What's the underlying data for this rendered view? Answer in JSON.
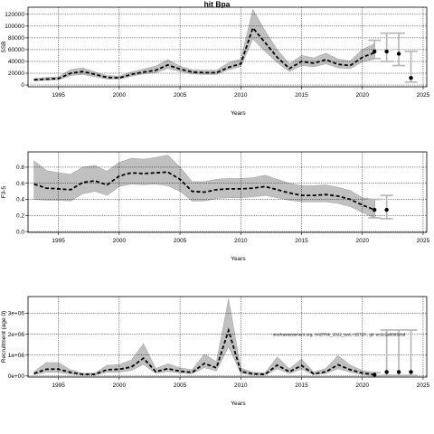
{
  "chart_data": [
    {
      "type": "line",
      "title": "hit Bpa",
      "xlabel": "Years",
      "ylabel": "SSB",
      "xlim": [
        1992.5,
        2025.3
      ],
      "ylim": [
        -3000,
        132000
      ],
      "xticks": [
        1995,
        2000,
        2005,
        2010,
        2015,
        2020,
        2025
      ],
      "yticks": [
        0,
        20000,
        40000,
        60000,
        80000,
        100000,
        120000
      ],
      "ytick_labels": [
        "0",
        "20000",
        "40000",
        "60000",
        "80000",
        "100000",
        "120000"
      ],
      "grid": true,
      "x": [
        1993,
        1994,
        1995,
        1996,
        1997,
        1998,
        1999,
        2000,
        2001,
        2002,
        2003,
        2004,
        2005,
        2006,
        2007,
        2008,
        2009,
        2010,
        2011,
        2012,
        2013,
        2014,
        2015,
        2016,
        2017,
        2018,
        2019,
        2020,
        2021
      ],
      "estimate": [
        9000,
        10000,
        11000,
        20000,
        23000,
        18000,
        13000,
        12000,
        18000,
        22000,
        25000,
        34000,
        27000,
        22000,
        21000,
        21000,
        30000,
        36000,
        97000,
        72000,
        47000,
        28000,
        40000,
        37000,
        43000,
        35000,
        33000,
        47000,
        55000
      ],
      "lower": [
        7000,
        8000,
        9000,
        16000,
        18000,
        14000,
        10000,
        10000,
        15000,
        19000,
        21000,
        28000,
        23000,
        19000,
        18000,
        18000,
        26000,
        31000,
        78000,
        57000,
        38000,
        23000,
        33000,
        31000,
        36000,
        29000,
        28000,
        39000,
        44000
      ],
      "upper": [
        11000,
        13000,
        14000,
        26000,
        29000,
        22000,
        16000,
        15000,
        22000,
        27000,
        32000,
        43000,
        32000,
        26000,
        25000,
        25000,
        38000,
        44000,
        128000,
        92000,
        60000,
        36000,
        50000,
        46000,
        54000,
        44000,
        41000,
        60000,
        70000
      ],
      "forecast": [
        {
          "x": 2021,
          "value": 57000,
          "low": 45000,
          "high": 76000
        },
        {
          "x": 2022,
          "value": 57000,
          "low": 40000,
          "high": 88000
        },
        {
          "x": 2023,
          "value": 53000,
          "low": 33000,
          "high": 88000
        },
        {
          "x": 2024,
          "value": 12000,
          "low": 5000,
          "high": 57000
        }
      ]
    },
    {
      "type": "line",
      "title": "",
      "xlabel": "Years",
      "ylabel": "F3-5",
      "xlim": [
        1992.5,
        2025.3
      ],
      "ylim": [
        -0.01,
        0.99
      ],
      "xticks": [
        1995,
        2000,
        2005,
        2010,
        2015,
        2020,
        2025
      ],
      "yticks": [
        0,
        0.2,
        0.4,
        0.6,
        0.8
      ],
      "ytick_labels": [
        "0.0",
        "0.2",
        "0.4",
        "0.6",
        "0.8"
      ],
      "grid": true,
      "x": [
        1993,
        1994,
        1995,
        1996,
        1997,
        1998,
        1999,
        2000,
        2001,
        2002,
        2003,
        2004,
        2005,
        2006,
        2007,
        2008,
        2009,
        2010,
        2011,
        2012,
        2013,
        2014,
        2015,
        2016,
        2017,
        2018,
        2019,
        2020,
        2021
      ],
      "estimate": [
        0.59,
        0.54,
        0.53,
        0.52,
        0.61,
        0.63,
        0.58,
        0.69,
        0.73,
        0.72,
        0.73,
        0.74,
        0.65,
        0.5,
        0.49,
        0.52,
        0.53,
        0.53,
        0.54,
        0.56,
        0.52,
        0.48,
        0.45,
        0.45,
        0.46,
        0.44,
        0.4,
        0.33,
        0.27
      ],
      "lower": [
        0.4,
        0.39,
        0.39,
        0.38,
        0.47,
        0.5,
        0.45,
        0.56,
        0.59,
        0.58,
        0.59,
        0.57,
        0.5,
        0.38,
        0.38,
        0.41,
        0.42,
        0.42,
        0.43,
        0.45,
        0.42,
        0.39,
        0.37,
        0.37,
        0.37,
        0.35,
        0.31,
        0.24,
        0.17
      ],
      "upper": [
        0.88,
        0.76,
        0.73,
        0.71,
        0.8,
        0.82,
        0.75,
        0.86,
        0.91,
        0.9,
        0.92,
        0.95,
        0.8,
        0.62,
        0.62,
        0.65,
        0.66,
        0.66,
        0.67,
        0.7,
        0.65,
        0.6,
        0.57,
        0.57,
        0.58,
        0.55,
        0.51,
        0.42,
        0.4
      ],
      "forecast": [
        {
          "x": 2021,
          "value": 0.27,
          "low": 0.17,
          "high": 0.4
        },
        {
          "x": 2022,
          "value": 0.27,
          "low": 0.16,
          "high": 0.45
        }
      ]
    },
    {
      "type": "line",
      "title": "",
      "xlabel": "Years",
      "ylabel": "Recruitment (age 0)",
      "xlim": [
        1992.5,
        2025.3
      ],
      "ylim": [
        -50000,
        3800000
      ],
      "xticks": [
        1995,
        2000,
        2005,
        2010,
        2015,
        2020,
        2025
      ],
      "yticks": [
        0,
        1000000,
        2000000,
        3000000
      ],
      "ytick_labels": [
        "0e+00",
        "1e+06",
        "2e+06",
        "3e+06"
      ],
      "grid": true,
      "annotation": "stockassessment.org, HADTbk_2022_test, r15720 , git: ec2c2a6065cbd",
      "x": [
        1993,
        1994,
        1995,
        1996,
        1997,
        1998,
        1999,
        2000,
        2001,
        2002,
        2003,
        2004,
        2005,
        2006,
        2007,
        2008,
        2009,
        2010,
        2011,
        2012,
        2013,
        2014,
        2015,
        2016,
        2017,
        2018,
        2019,
        2020,
        2021
      ],
      "estimate": [
        120000,
        320000,
        330000,
        170000,
        80000,
        80000,
        300000,
        320000,
        430000,
        850000,
        210000,
        350000,
        230000,
        170000,
        600000,
        390000,
        2180000,
        220000,
        100000,
        80000,
        520000,
        200000,
        500000,
        100000,
        200000,
        540000,
        300000,
        140000,
        60000
      ],
      "lower": [
        60000,
        180000,
        180000,
        90000,
        40000,
        40000,
        180000,
        190000,
        260000,
        560000,
        130000,
        220000,
        140000,
        100000,
        400000,
        240000,
        1400000,
        130000,
        50000,
        40000,
        340000,
        120000,
        320000,
        60000,
        120000,
        350000,
        180000,
        70000,
        20000
      ],
      "upper": [
        200000,
        640000,
        640000,
        290000,
        130000,
        140000,
        510000,
        550000,
        760000,
        1540000,
        360000,
        580000,
        390000,
        300000,
        1040000,
        680000,
        3700000,
        380000,
        180000,
        150000,
        910000,
        350000,
        810000,
        180000,
        360000,
        970000,
        520000,
        260000,
        160000
      ],
      "forecast": [
        {
          "x": 2021,
          "value": 60000,
          "low": 20000,
          "high": 160000
        },
        {
          "x": 2022,
          "value": 190000,
          "low": 30000,
          "high": 2200000
        },
        {
          "x": 2023,
          "value": 190000,
          "low": 30000,
          "high": 2200000
        },
        {
          "x": 2024,
          "value": 190000,
          "low": 30000,
          "high": 2200000
        }
      ]
    }
  ],
  "colors": {
    "band": "#c0c0c0",
    "band_edge": "#a8a8a8",
    "line": "#000000",
    "forecast_bar": "#b4b4b4",
    "grid": "#000000"
  }
}
